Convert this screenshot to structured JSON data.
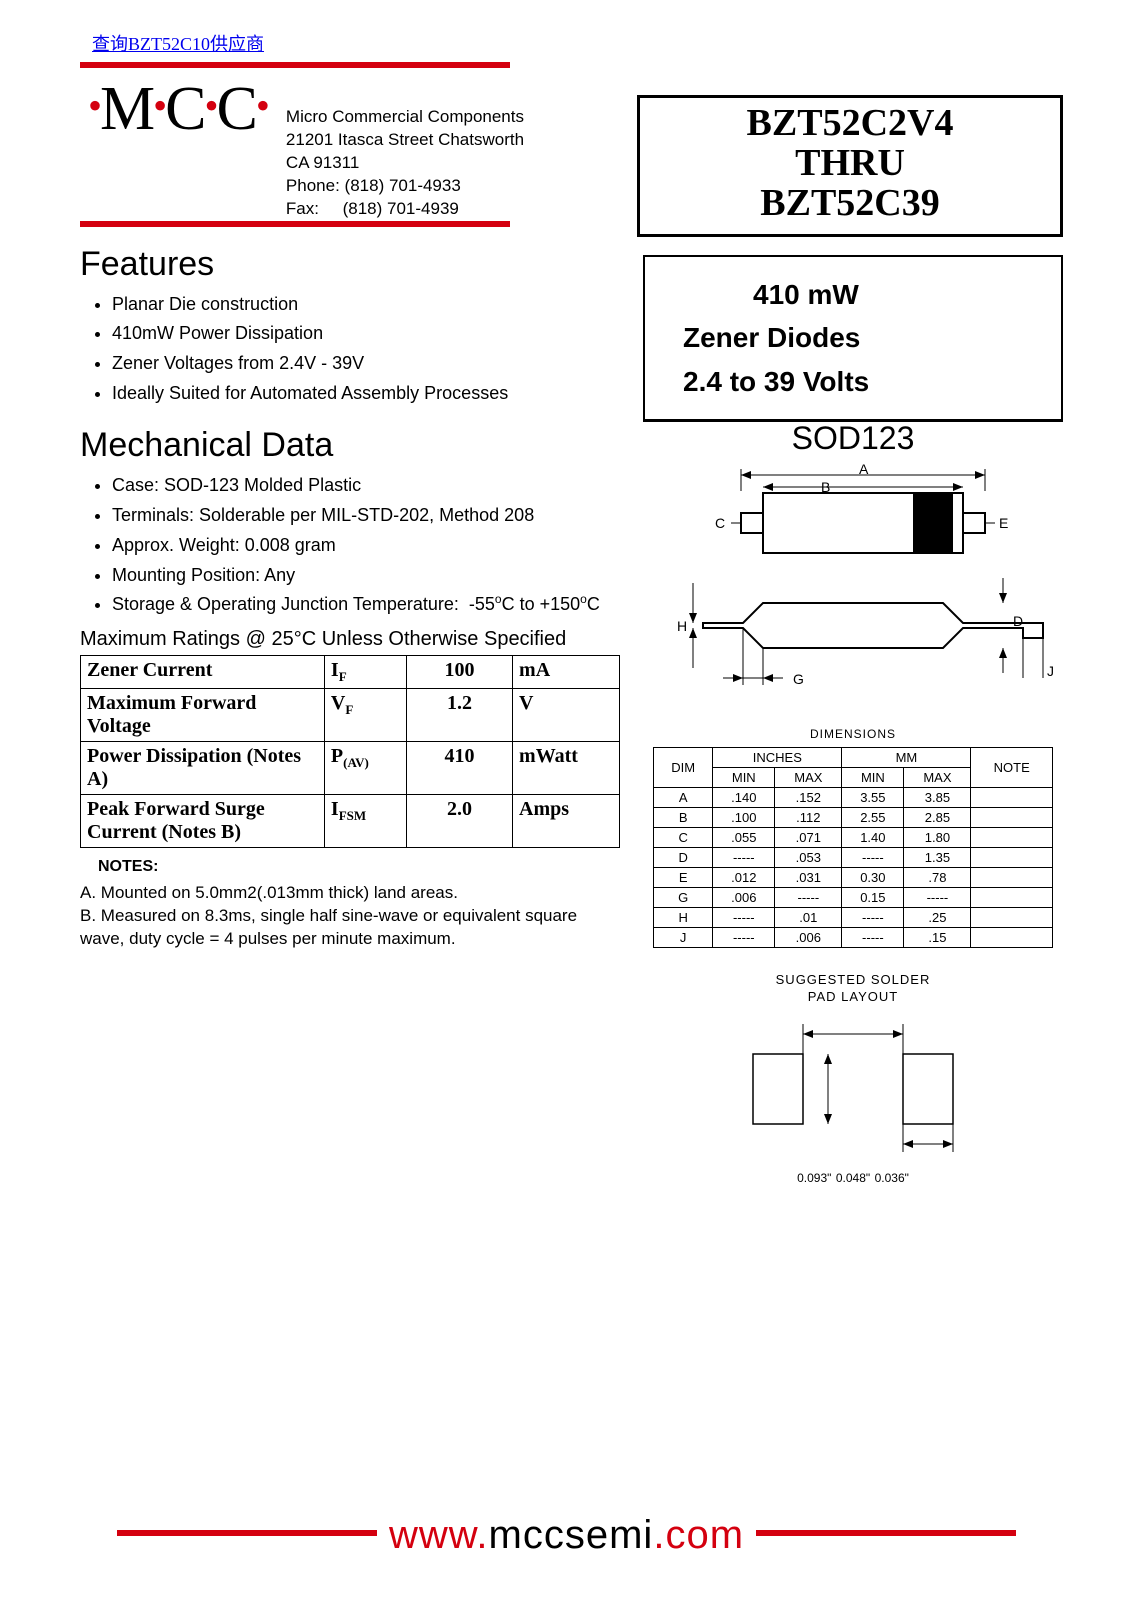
{
  "top_link": "查询BZT52C10供应商",
  "logo": {
    "text": "M C C"
  },
  "company": {
    "name": "Micro Commercial Components",
    "addr1": "21201 Itasca Street Chatsworth",
    "addr2": "CA 91311",
    "phone_label": "Phone:",
    "phone": "(818) 701-4933",
    "fax_label": "Fax:",
    "fax": "(818) 701-4939"
  },
  "title": {
    "line1": "BZT52C2V4",
    "line2": "THRU",
    "line3": "BZT52C39"
  },
  "subtitle": {
    "line1": "410 mW",
    "line2": "Zener Diodes",
    "line3": "2.4 to 39 Volts"
  },
  "features": {
    "heading": "Features",
    "items": [
      "Planar Die construction",
      "410mW Power Dissipation",
      "Zener Voltages from 2.4V - 39V",
      "Ideally Suited for Automated Assembly Processes"
    ]
  },
  "mechanical": {
    "heading": "Mechanical Data",
    "items": [
      "Case:   SOD-123 Molded Plastic",
      "Terminals: Solderable per MIL-STD-202, Method 208",
      "Approx. Weight: 0.008 gram",
      "Mounting Position: Any",
      "Storage & Operating Junction Temperature:  -55°C to +150°C"
    ]
  },
  "ratings_caption": "Maximum Ratings @ 25°C Unless Otherwise Specified",
  "ratings": [
    {
      "param": "Zener Current",
      "sym": "I",
      "sub": "F",
      "val": "100",
      "unit": "mA"
    },
    {
      "param": "Maximum Forward Voltage",
      "sym": "V",
      "sub": "F",
      "val": "1.2",
      "unit": "V"
    },
    {
      "param": "Power Dissipation (Notes A)",
      "sym": "P",
      "sub": "(AV)",
      "val": "410",
      "unit": "mWatt"
    },
    {
      "param": "Peak Forward Surge Current (Notes B)",
      "sym": "I",
      "sub": "FSM",
      "val": "2.0",
      "unit": "Amps"
    }
  ],
  "notes_label": "NOTES:",
  "notes": [
    "A. Mounted on 5.0mm2(.013mm thick) land areas.",
    "B. Measured on 8.3ms, single half sine-wave or equivalent square wave, duty cycle = 4 pulses per minute maximum."
  ],
  "package": {
    "title": "SOD123",
    "labels": [
      "A",
      "B",
      "C",
      "E",
      "H",
      "D",
      "G",
      "J"
    ],
    "dims_caption": "DIMENSIONS",
    "headers": {
      "dim": "DIM",
      "inches": "INCHES",
      "mm": "MM",
      "note": "NOTE",
      "min": "MIN",
      "max": "MAX"
    },
    "rows": [
      {
        "d": "A",
        "in_min": ".140",
        "in_max": ".152",
        "mm_min": "3.55",
        "mm_max": "3.85",
        "note": ""
      },
      {
        "d": "B",
        "in_min": ".100",
        "in_max": ".112",
        "mm_min": "2.55",
        "mm_max": "2.85",
        "note": ""
      },
      {
        "d": "C",
        "in_min": ".055",
        "in_max": ".071",
        "mm_min": "1.40",
        "mm_max": "1.80",
        "note": ""
      },
      {
        "d": "D",
        "in_min": "-----",
        "in_max": ".053",
        "mm_min": "-----",
        "mm_max": "1.35",
        "note": ""
      },
      {
        "d": "E",
        "in_min": ".012",
        "in_max": ".031",
        "mm_min": "0.30",
        "mm_max": ".78",
        "note": ""
      },
      {
        "d": "G",
        "in_min": ".006",
        "in_max": "-----",
        "mm_min": "0.15",
        "mm_max": "-----",
        "note": ""
      },
      {
        "d": "H",
        "in_min": "-----",
        "in_max": ".01",
        "mm_min": "-----",
        "mm_max": ".25",
        "note": ""
      },
      {
        "d": "J",
        "in_min": "-----",
        "in_max": ".006",
        "mm_min": "-----",
        "mm_max": ".15",
        "note": ""
      }
    ]
  },
  "solder": {
    "title1": "SUGGESTED SOLDER",
    "title2": "PAD LAYOUT",
    "dim1": "0.093\"",
    "dim2": "0.048\"",
    "dim3": "0.036\""
  },
  "footer": {
    "prefix": "www.",
    "domain": "mccsemi",
    "suffix": ".com"
  },
  "colors": {
    "brand_red": "#d4000f",
    "black": "#000000"
  }
}
